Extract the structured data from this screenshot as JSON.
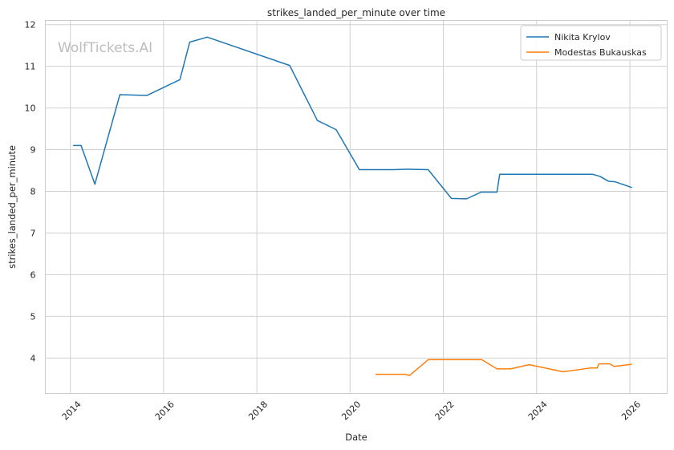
{
  "watermark": "WolfTickets.AI",
  "chart_data": {
    "type": "line",
    "title": "strikes_landed_per_minute over time",
    "xlabel": "Date",
    "ylabel": "strikes_landed_per_minute",
    "x_tick_labels": [
      "2014",
      "2016",
      "2018",
      "2020",
      "2022",
      "2024",
      "2026"
    ],
    "y_tick_labels": [
      "4",
      "5",
      "6",
      "7",
      "8",
      "9",
      "10",
      "11",
      "12"
    ],
    "xlim": [
      "2013-06-19",
      "2026-10-20"
    ],
    "ylim": [
      3.15,
      12.1
    ],
    "grid": true,
    "legend_position": "top-right",
    "series": [
      {
        "name": "Nikita Krylov",
        "color": "#1f77b4",
        "points": [
          [
            "2014-01-23",
            9.1
          ],
          [
            "2014-03-26",
            9.1
          ],
          [
            "2014-07-12",
            8.17
          ],
          [
            "2015-01-24",
            10.32
          ],
          [
            "2015-08-23",
            10.3
          ],
          [
            "2016-05-08",
            10.68
          ],
          [
            "2016-07-24",
            11.58
          ],
          [
            "2016-12-09",
            11.7
          ],
          [
            "2018-09-15",
            11.02
          ],
          [
            "2019-04-20",
            9.7
          ],
          [
            "2019-09-14",
            9.48
          ],
          [
            "2020-03-14",
            8.52
          ],
          [
            "2020-12-05",
            8.52
          ],
          [
            "2021-03-20",
            8.53
          ],
          [
            "2021-09-04",
            8.52
          ],
          [
            "2022-03-05",
            7.83
          ],
          [
            "2022-07-02",
            7.82
          ],
          [
            "2022-10-22",
            7.98
          ],
          [
            "2023-02-25",
            7.98
          ],
          [
            "2023-03-18",
            8.41
          ],
          [
            "2023-10-21",
            8.41
          ],
          [
            "2025-03-15",
            8.41
          ],
          [
            "2025-05-10",
            8.36
          ],
          [
            "2025-07-19",
            8.24
          ],
          [
            "2025-09-06",
            8.23
          ],
          [
            "2026-01-17",
            8.09
          ]
        ]
      },
      {
        "name": "Modestas Bukauskas",
        "color": "#ff7f0e",
        "points": [
          [
            "2020-07-18",
            3.61
          ],
          [
            "2021-03-06",
            3.61
          ],
          [
            "2021-04-10",
            3.58
          ],
          [
            "2021-09-04",
            3.96
          ],
          [
            "2022-10-29",
            3.96
          ],
          [
            "2023-02-25",
            3.74
          ],
          [
            "2023-06-10",
            3.74
          ],
          [
            "2023-11-04",
            3.84
          ],
          [
            "2024-07-27",
            3.67
          ],
          [
            "2025-02-22",
            3.76
          ],
          [
            "2025-04-19",
            3.76
          ],
          [
            "2025-05-03",
            3.86
          ],
          [
            "2025-07-26",
            3.86
          ],
          [
            "2025-08-30",
            3.8
          ],
          [
            "2026-01-17",
            3.85
          ]
        ]
      }
    ]
  }
}
